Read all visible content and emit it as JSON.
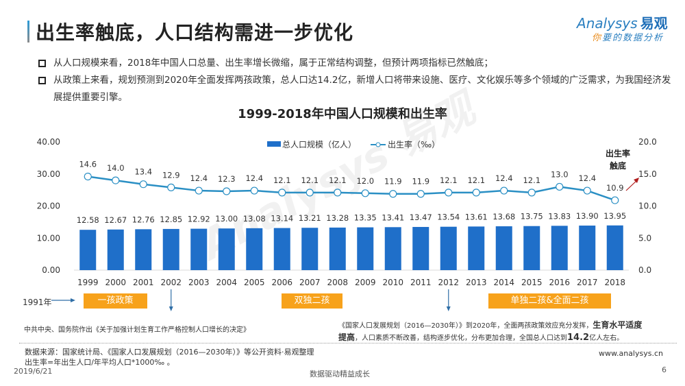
{
  "header": {
    "title": "出生率触底，人口结构需进一步优化",
    "logo": {
      "brand": "nalysys",
      "brand_prefix": "A",
      "brand_cn": "易观",
      "tagline_first": "你",
      "tagline_rest": "要的数据分析"
    }
  },
  "bullets": [
    "从人口规模来看，2018年中国人口总量、出生率增长微缩，属于正常结构调整，但预计两项指标已然触底；",
    "从政策上来看，规划预测到2020年全面发挥两孩政策，总人口达14.2亿，新增人口将带来设施、医疗、文化娱乐等多个领域的广泛需求，为我国经济发展提供重要引擎。"
  ],
  "chart_data": {
    "type": "bar",
    "title": "1999-2018年中国人口规模和出生率",
    "categories": [
      "1999",
      "2000",
      "2001",
      "2002",
      "2003",
      "2004",
      "2005",
      "2006",
      "2007",
      "2008",
      "2009",
      "2010",
      "2011",
      "2012",
      "2013",
      "2014",
      "2015",
      "2016",
      "2017",
      "2018"
    ],
    "series": [
      {
        "name": "总人口规模（亿人）",
        "type": "bar",
        "axis": "left",
        "color": "#1f6fc9",
        "values": [
          12.58,
          12.67,
          12.76,
          12.85,
          12.92,
          13.0,
          13.08,
          13.14,
          13.21,
          13.28,
          13.35,
          13.41,
          13.47,
          13.54,
          13.61,
          13.68,
          13.75,
          13.83,
          13.9,
          13.95
        ],
        "labels": [
          "12.58",
          "12.67",
          "12.76",
          "12.85",
          "12.92",
          "13.00",
          "13.08",
          "13.14",
          "13.21",
          "13.28",
          "13.35",
          "13.41",
          "13.47",
          "13.54",
          "13.61",
          "13.68",
          "13.75",
          "13.83",
          "13.90",
          "13.95"
        ]
      },
      {
        "name": "出生率（‰）",
        "type": "line",
        "axis": "right",
        "color": "#2a8fc4",
        "values": [
          14.6,
          14.0,
          13.4,
          12.9,
          12.4,
          12.3,
          12.4,
          12.1,
          12.1,
          12.1,
          12.0,
          11.9,
          11.9,
          12.1,
          12.1,
          12.4,
          12.1,
          13.0,
          12.4,
          10.9
        ],
        "labels": [
          "14.6",
          "14.0",
          "13.4",
          "12.9",
          "12.4",
          "12.3",
          "12.4",
          "12.1",
          "12.1",
          "12.1",
          "12.0",
          "11.9",
          "11.9",
          "12.1",
          "12.1",
          "12.4",
          "12.1",
          "13.0",
          "12.4",
          "10.9"
        ]
      }
    ],
    "y_left": {
      "range": [
        0,
        40
      ],
      "ticks": [
        "0.00",
        "10.00",
        "20.00",
        "30.00",
        "40.00"
      ]
    },
    "y_right": {
      "range": [
        0,
        20
      ],
      "ticks": [
        "0.0",
        "5.0",
        "10.0",
        "15.0",
        "20.0"
      ]
    },
    "legend": "top-center",
    "grid": false,
    "annotation": {
      "line1": "出生率",
      "line2": "触底"
    }
  },
  "timeline": {
    "start_label": "1991年",
    "policies": [
      "一孩政策",
      "双独二孩",
      "单独二孩&全面二孩"
    ],
    "note_left": "中共中央、国务院作出《关于加强计划生育工作严格控制人口增长的决定》",
    "note_right_part1": "《国家人口发展规划（2016—2030年）》到2020年，全面两孩政策效应充分发挥，",
    "note_right_bold1": "生育水平适度提高",
    "note_right_part2": "，人口素质不断改善，结构逐步优化，分布更加合理，全国总人口达到",
    "note_right_bold2": "14.2",
    "note_right_part3": "亿人左右。"
  },
  "footer": {
    "source": "数据来源：国家统计局、《国家人口发展规划（2016—2030年）》等公开资料·易观整理",
    "formula": "出生率=年出生人口/年平均人口*1000‰ 。",
    "date": "2019/6/21",
    "slogan": "数据驱动精益成长",
    "website": "www.analysys.cn",
    "page": "6"
  }
}
